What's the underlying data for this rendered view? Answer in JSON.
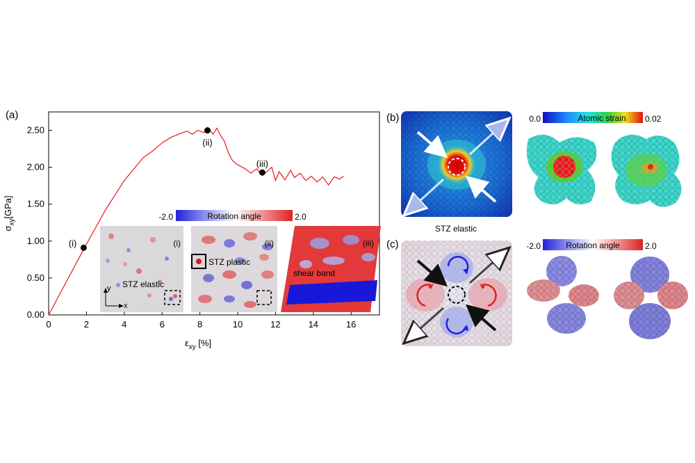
{
  "panel_labels": {
    "a": "(a)",
    "b": "(b)",
    "c": "(c)"
  },
  "chart_data": {
    "type": "line",
    "xlabel": "ε",
    "xlabel_sub": "xy",
    "xlabel_unit": " [%]",
    "ylabel": "σ",
    "ylabel_sub": "xy",
    "ylabel_unit": "[GPa]",
    "xlim": [
      0,
      17.5
    ],
    "ylim": [
      0,
      2.75
    ],
    "xticks": [
      0,
      2,
      4,
      6,
      8,
      10,
      12,
      14,
      16
    ],
    "yticks": [
      "0.00",
      "0.50",
      "1.00",
      "1.50",
      "2.00",
      "2.50"
    ],
    "series": [
      {
        "name": "stress-strain",
        "color": "#e8141c",
        "x": [
          0,
          1,
          2,
          3,
          4,
          5,
          5.5,
          6,
          6.5,
          7,
          7.3,
          7.6,
          7.9,
          8.2,
          8.5,
          8.7,
          8.9,
          9.1,
          9.3,
          9.5,
          9.7,
          9.9,
          10.1,
          10.4,
          10.7,
          11.0,
          11.3,
          11.5,
          11.8,
          12.0,
          12.2,
          12.5,
          12.8,
          13.0,
          13.3,
          13.6,
          13.9,
          14.2,
          14.5,
          14.8,
          15.1,
          15.4,
          15.6
        ],
        "y": [
          0,
          0.48,
          0.96,
          1.42,
          1.82,
          2.13,
          2.22,
          2.33,
          2.41,
          2.46,
          2.49,
          2.45,
          2.5,
          2.47,
          2.51,
          2.45,
          2.53,
          2.43,
          2.35,
          2.2,
          2.1,
          2.05,
          2.02,
          1.98,
          1.92,
          1.98,
          1.89,
          1.93,
          2.0,
          1.82,
          1.94,
          1.83,
          1.96,
          1.86,
          1.92,
          1.82,
          1.88,
          1.8,
          1.87,
          1.76,
          1.87,
          1.84,
          1.88
        ]
      }
    ],
    "markers": [
      {
        "label": "(i)",
        "x": 1.85,
        "y": 0.91
      },
      {
        "label": "(ii)",
        "x": 8.4,
        "y": 2.5
      },
      {
        "label": "(iii)",
        "x": 11.3,
        "y": 1.93
      }
    ]
  },
  "rotation_colorbar": {
    "title": "Rotation angle",
    "min": "-2.0",
    "max": "2.0"
  },
  "strain_colorbar": {
    "title": "Atomic strain",
    "min": "0.0",
    "max": "0.02"
  },
  "rotation_colorbar_c": {
    "title": "Rotation angle",
    "min": "-2.0",
    "max": "2.0"
  },
  "snapshots": {
    "i": {
      "tag": "(i)",
      "caption": "STZ elastic",
      "axis_x": "x",
      "axis_y": "y"
    },
    "ii": {
      "tag": "(ii)",
      "caption": "STZ plastic"
    },
    "iii": {
      "tag": "(iii)",
      "caption": "shear band"
    }
  },
  "panel_b": {
    "caption": "STZ elastic"
  },
  "colors": {
    "line": "#e8141c",
    "blue": "#2b2bd6",
    "red": "#e02020"
  }
}
